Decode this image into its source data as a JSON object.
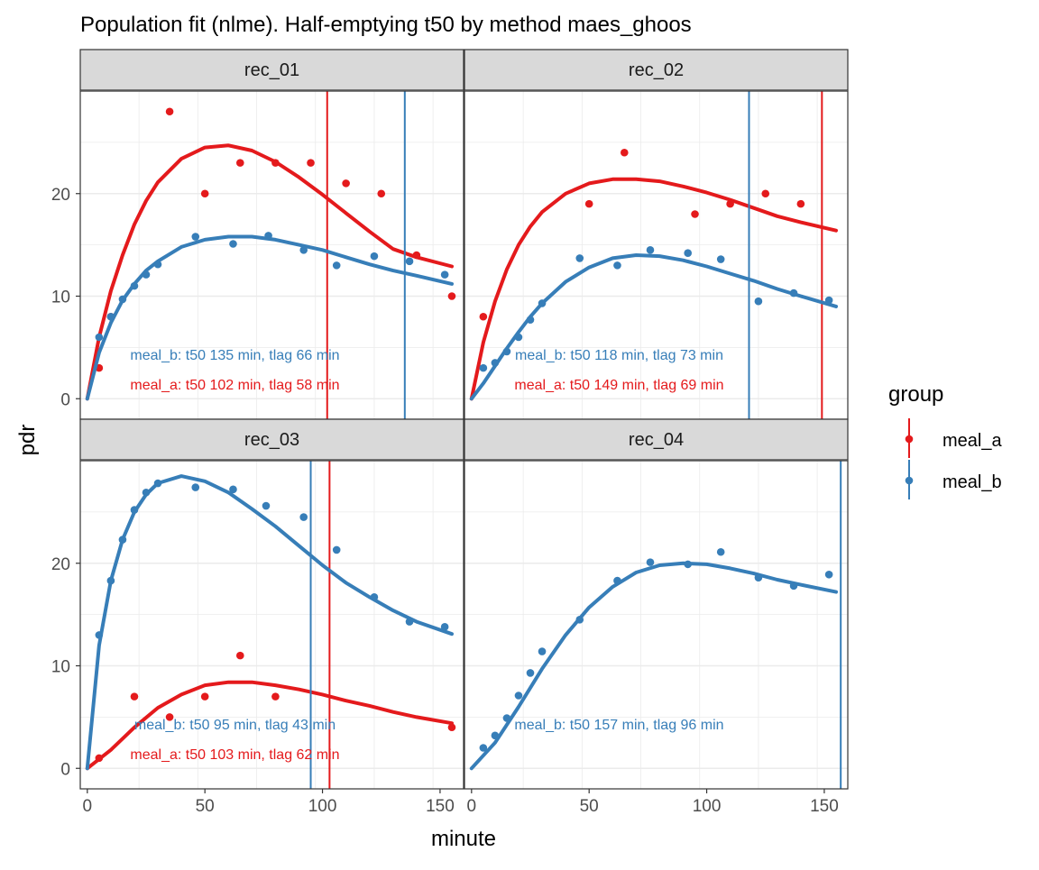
{
  "chart_data": {
    "type": "scatter",
    "title": "Population fit (nlme). Half-emptying t50 by method maes_ghoos",
    "xlabel": "minute",
    "ylabel": "pdr",
    "xlim": [
      -3,
      160
    ],
    "ylim": [
      -2,
      30
    ],
    "x_ticks": [
      0,
      50,
      100,
      150
    ],
    "y_ticks": [
      0,
      10,
      20
    ],
    "grid": true,
    "legend": {
      "title": "group",
      "position": "right",
      "entries": [
        "meal_a",
        "meal_b"
      ]
    },
    "colors": {
      "meal_a": "#e41a1c",
      "meal_b": "#377eb8"
    },
    "panels": [
      {
        "name": "rec_01",
        "series": [
          {
            "name": "meal_a",
            "points": [
              [
                5,
                3
              ],
              [
                10,
                8
              ],
              [
                35,
                28
              ],
              [
                50,
                20
              ],
              [
                65,
                23
              ],
              [
                80,
                23
              ],
              [
                95,
                23
              ],
              [
                110,
                21
              ],
              [
                125,
                20
              ],
              [
                140,
                14
              ],
              [
                155,
                10
              ]
            ],
            "fit": [
              [
                0,
                0
              ],
              [
                5,
                6
              ],
              [
                10,
                10.5
              ],
              [
                15,
                14
              ],
              [
                20,
                17
              ],
              [
                25,
                19.3
              ],
              [
                30,
                21.1
              ],
              [
                40,
                23.4
              ],
              [
                50,
                24.5
              ],
              [
                60,
                24.7
              ],
              [
                70,
                24.2
              ],
              [
                80,
                23.1
              ],
              [
                90,
                21.6
              ],
              [
                100,
                19.9
              ],
              [
                110,
                18.1
              ],
              [
                120,
                16.3
              ],
              [
                130,
                14.6
              ],
              [
                140,
                13.8
              ],
              [
                155,
                12.9
              ]
            ],
            "t50": 102,
            "annotation": "meal_a: t50 102 min, tlag 58 min"
          },
          {
            "name": "meal_b",
            "points": [
              [
                5,
                6
              ],
              [
                10,
                8
              ],
              [
                15,
                9.7
              ],
              [
                20,
                11
              ],
              [
                25,
                12.1
              ],
              [
                30,
                13.1
              ],
              [
                46,
                15.8
              ],
              [
                62,
                15.1
              ],
              [
                77,
                15.9
              ],
              [
                92,
                14.5
              ],
              [
                106,
                13
              ],
              [
                122,
                13.9
              ],
              [
                137,
                13.4
              ],
              [
                152,
                12.1
              ]
            ],
            "fit": [
              [
                0,
                0
              ],
              [
                5,
                4.5
              ],
              [
                10,
                7.4
              ],
              [
                15,
                9.6
              ],
              [
                20,
                11.2
              ],
              [
                25,
                12.5
              ],
              [
                30,
                13.4
              ],
              [
                40,
                14.8
              ],
              [
                50,
                15.5
              ],
              [
                60,
                15.8
              ],
              [
                70,
                15.8
              ],
              [
                80,
                15.5
              ],
              [
                90,
                15
              ],
              [
                100,
                14.5
              ],
              [
                110,
                13.8
              ],
              [
                120,
                13.1
              ],
              [
                130,
                12.5
              ],
              [
                140,
                12
              ],
              [
                155,
                11.2
              ]
            ],
            "t50": 135,
            "annotation": "meal_b: t50 135 min, tlag 66 min"
          }
        ]
      },
      {
        "name": "rec_02",
        "series": [
          {
            "name": "meal_a",
            "points": [
              [
                5,
                8
              ],
              [
                50,
                19
              ],
              [
                65,
                24
              ],
              [
                95,
                18
              ],
              [
                110,
                19
              ],
              [
                125,
                20
              ],
              [
                140,
                19
              ]
            ],
            "fit": [
              [
                0,
                0
              ],
              [
                5,
                5.5
              ],
              [
                10,
                9.5
              ],
              [
                15,
                12.6
              ],
              [
                20,
                15
              ],
              [
                25,
                16.8
              ],
              [
                30,
                18.2
              ],
              [
                40,
                20
              ],
              [
                50,
                21
              ],
              [
                60,
                21.4
              ],
              [
                70,
                21.4
              ],
              [
                80,
                21.2
              ],
              [
                90,
                20.7
              ],
              [
                100,
                20.1
              ],
              [
                110,
                19.4
              ],
              [
                120,
                18.6
              ],
              [
                130,
                17.8
              ],
              [
                140,
                17.2
              ],
              [
                155,
                16.4
              ]
            ],
            "t50": 149,
            "annotation": "meal_a: t50 149 min, tlag 69 min"
          },
          {
            "name": "meal_b",
            "points": [
              [
                5,
                3
              ],
              [
                10,
                3.5
              ],
              [
                15,
                4.6
              ],
              [
                20,
                6
              ],
              [
                25,
                7.7
              ],
              [
                30,
                9.3
              ],
              [
                46,
                13.7
              ],
              [
                62,
                13
              ],
              [
                76,
                14.5
              ],
              [
                92,
                14.2
              ],
              [
                106,
                13.6
              ],
              [
                122,
                9.5
              ],
              [
                137,
                10.3
              ],
              [
                152,
                9.6
              ]
            ],
            "fit": [
              [
                0,
                0
              ],
              [
                5,
                1.5
              ],
              [
                10,
                3.2
              ],
              [
                15,
                4.9
              ],
              [
                20,
                6.5
              ],
              [
                25,
                8
              ],
              [
                30,
                9.3
              ],
              [
                40,
                11.4
              ],
              [
                50,
                12.8
              ],
              [
                60,
                13.7
              ],
              [
                70,
                14
              ],
              [
                80,
                13.9
              ],
              [
                90,
                13.5
              ],
              [
                100,
                12.9
              ],
              [
                110,
                12.2
              ],
              [
                120,
                11.5
              ],
              [
                130,
                10.7
              ],
              [
                140,
                10
              ],
              [
                155,
                9
              ]
            ],
            "t50": 118,
            "annotation": "meal_b: t50 118 min, tlag 73 min"
          }
        ]
      },
      {
        "name": "rec_03",
        "series": [
          {
            "name": "meal_a",
            "points": [
              [
                5,
                1
              ],
              [
                20,
                7
              ],
              [
                35,
                5
              ],
              [
                50,
                7
              ],
              [
                65,
                11
              ],
              [
                80,
                7
              ],
              [
                155,
                4
              ]
            ],
            "fit": [
              [
                0,
                0
              ],
              [
                10,
                1.8
              ],
              [
                20,
                4
              ],
              [
                30,
                5.9
              ],
              [
                40,
                7.2
              ],
              [
                50,
                8.1
              ],
              [
                60,
                8.4
              ],
              [
                70,
                8.4
              ],
              [
                80,
                8.1
              ],
              [
                90,
                7.7
              ],
              [
                100,
                7.2
              ],
              [
                110,
                6.6
              ],
              [
                120,
                6.1
              ],
              [
                130,
                5.5
              ],
              [
                140,
                5
              ],
              [
                155,
                4.4
              ]
            ],
            "t50": 103,
            "annotation": "meal_a: t50 103 min, tlag 62 min"
          },
          {
            "name": "meal_b",
            "points": [
              [
                5,
                13
              ],
              [
                10,
                18.3
              ],
              [
                15,
                22.3
              ],
              [
                20,
                25.2
              ],
              [
                25,
                26.9
              ],
              [
                30,
                27.8
              ],
              [
                46,
                27.4
              ],
              [
                62,
                27.2
              ],
              [
                76,
                25.6
              ],
              [
                92,
                24.5
              ],
              [
                106,
                21.3
              ],
              [
                122,
                16.7
              ],
              [
                137,
                14.3
              ],
              [
                152,
                13.8
              ]
            ],
            "fit": [
              [
                0,
                0
              ],
              [
                5,
                12
              ],
              [
                10,
                18.3
              ],
              [
                15,
                22.3
              ],
              [
                20,
                25
              ],
              [
                25,
                26.7
              ],
              [
                30,
                27.8
              ],
              [
                40,
                28.5
              ],
              [
                50,
                28
              ],
              [
                60,
                26.9
              ],
              [
                70,
                25.3
              ],
              [
                80,
                23.6
              ],
              [
                90,
                21.7
              ],
              [
                100,
                19.8
              ],
              [
                110,
                18.1
              ],
              [
                120,
                16.7
              ],
              [
                130,
                15.4
              ],
              [
                140,
                14.3
              ],
              [
                155,
                13.1
              ]
            ],
            "t50": 95,
            "annotation": "meal_b: t50 95 min, tlag 43 min"
          }
        ]
      },
      {
        "name": "rec_04",
        "series": [
          {
            "name": "meal_b",
            "points": [
              [
                5,
                2
              ],
              [
                10,
                3.2
              ],
              [
                15,
                4.9
              ],
              [
                20,
                7.1
              ],
              [
                25,
                9.3
              ],
              [
                30,
                11.4
              ],
              [
                46,
                14.5
              ],
              [
                62,
                18.3
              ],
              [
                76,
                20.1
              ],
              [
                92,
                19.9
              ],
              [
                106,
                21.1
              ],
              [
                122,
                18.6
              ],
              [
                137,
                17.8
              ],
              [
                152,
                18.9
              ]
            ],
            "fit": [
              [
                0,
                0
              ],
              [
                10,
                2.5
              ],
              [
                20,
                6
              ],
              [
                30,
                9.7
              ],
              [
                40,
                13
              ],
              [
                50,
                15.7
              ],
              [
                60,
                17.7
              ],
              [
                70,
                19.1
              ],
              [
                80,
                19.8
              ],
              [
                90,
                20
              ],
              [
                100,
                19.9
              ],
              [
                110,
                19.5
              ],
              [
                120,
                19
              ],
              [
                130,
                18.4
              ],
              [
                140,
                17.9
              ],
              [
                155,
                17.2
              ]
            ],
            "t50": 157,
            "annotation": "meal_b: t50 157 min, tlag 96 min"
          }
        ]
      }
    ]
  }
}
